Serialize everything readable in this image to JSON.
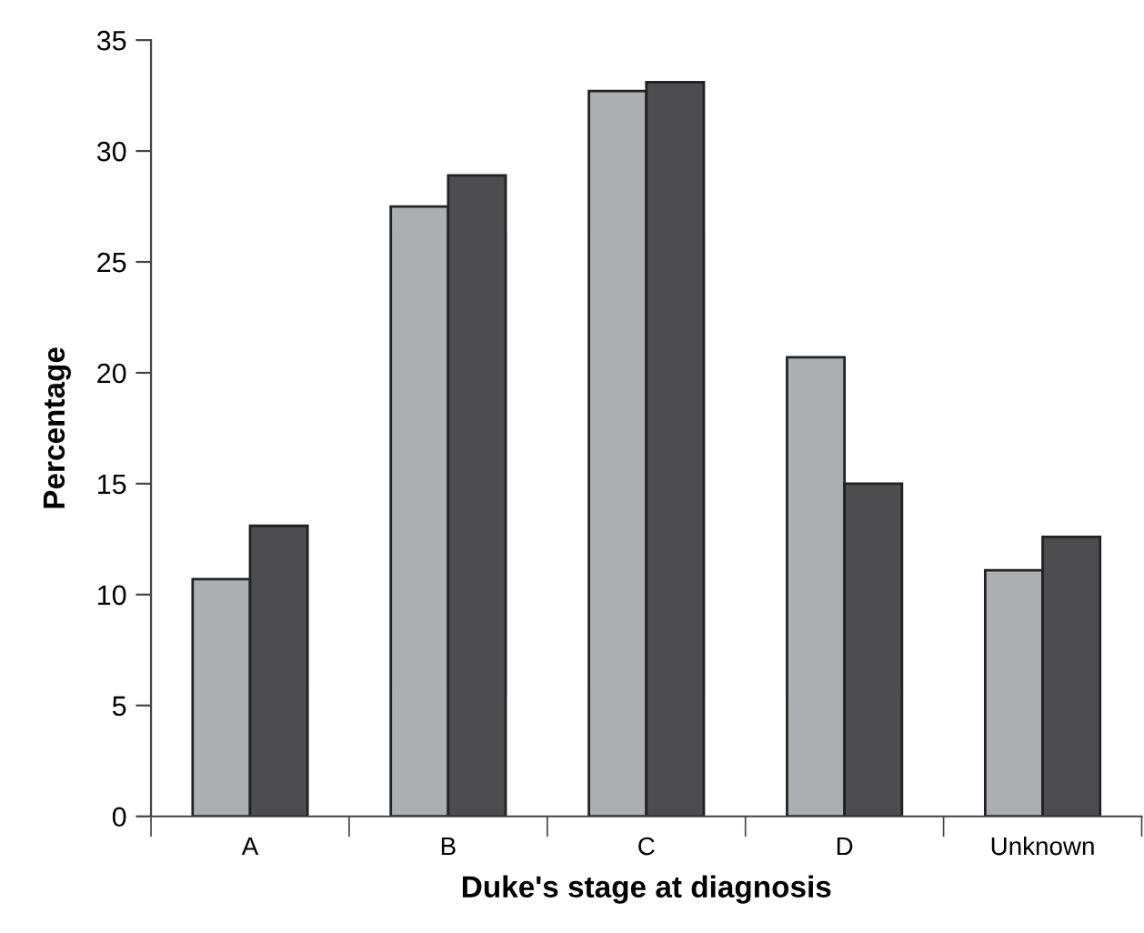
{
  "chart_data": {
    "type": "bar",
    "xlabel": "Duke's stage at diagnosis",
    "ylabel": "Percentage",
    "categories": [
      "A",
      "B",
      "C",
      "D",
      "Unknown"
    ],
    "series": [
      {
        "color": "#adaeb1",
        "values": [
          10.7,
          27.5,
          32.7,
          20.7,
          11.1
        ]
      },
      {
        "color": "#4d4d4f",
        "values": [
          13.1,
          28.9,
          33.1,
          15.0,
          12.6
        ]
      }
    ],
    "ylim": [
      0,
      35
    ],
    "yticks": [
      0,
      5,
      10,
      15,
      20,
      25,
      30,
      35
    ],
    "grid": false,
    "legend": false
  }
}
